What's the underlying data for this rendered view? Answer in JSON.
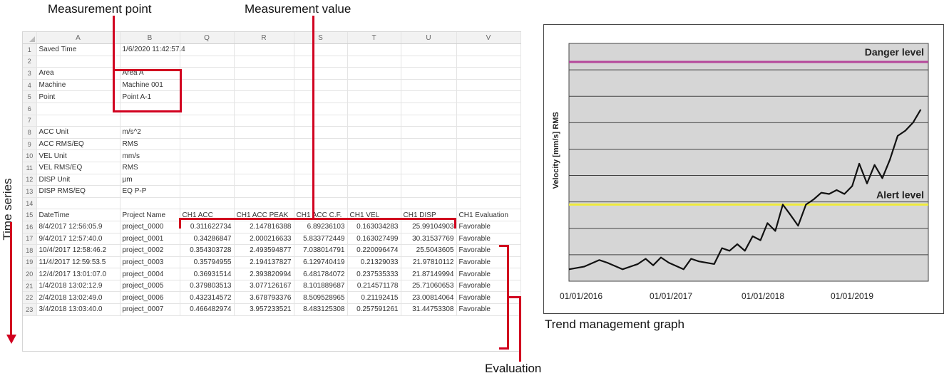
{
  "callouts": {
    "measurement_point": "Measurement point",
    "measurement_value": "Measurement value",
    "time_series": "Time series",
    "evaluation": "Evaluation",
    "trend_graph": "Trend management graph"
  },
  "sheet": {
    "columns": [
      "A",
      "B",
      "Q",
      "R",
      "S",
      "T",
      "U",
      "V"
    ],
    "rows": [
      {
        "n": "1",
        "cells": [
          "Saved Time",
          "1/6/2020 11:42:57.4",
          "",
          "",
          "",
          "",
          "",
          ""
        ]
      },
      {
        "n": "2",
        "cells": [
          "",
          "",
          "",
          "",
          "",
          "",
          "",
          ""
        ]
      },
      {
        "n": "3",
        "cells": [
          "Area",
          "Area A",
          "",
          "",
          "",
          "",
          "",
          ""
        ]
      },
      {
        "n": "4",
        "cells": [
          "Machine",
          "Machine 001",
          "",
          "",
          "",
          "",
          "",
          ""
        ]
      },
      {
        "n": "5",
        "cells": [
          "Point",
          "Point A-1",
          "",
          "",
          "",
          "",
          "",
          ""
        ]
      },
      {
        "n": "6",
        "cells": [
          "",
          "",
          "",
          "",
          "",
          "",
          "",
          ""
        ]
      },
      {
        "n": "7",
        "cells": [
          "",
          "",
          "",
          "",
          "",
          "",
          "",
          ""
        ]
      },
      {
        "n": "8",
        "cells": [
          "ACC Unit",
          "m/s^2",
          "",
          "",
          "",
          "",
          "",
          ""
        ]
      },
      {
        "n": "9",
        "cells": [
          "ACC RMS/EQ",
          "RMS",
          "",
          "",
          "",
          "",
          "",
          ""
        ]
      },
      {
        "n": "10",
        "cells": [
          "VEL Unit",
          "mm/s",
          "",
          "",
          "",
          "",
          "",
          ""
        ]
      },
      {
        "n": "11",
        "cells": [
          "VEL RMS/EQ",
          "RMS",
          "",
          "",
          "",
          "",
          "",
          ""
        ]
      },
      {
        "n": "12",
        "cells": [
          "DISP Unit",
          "µm",
          "",
          "",
          "",
          "",
          "",
          ""
        ]
      },
      {
        "n": "13",
        "cells": [
          "DISP RMS/EQ",
          "EQ P-P",
          "",
          "",
          "",
          "",
          "",
          ""
        ]
      },
      {
        "n": "14",
        "cells": [
          "",
          "",
          "",
          "",
          "",
          "",
          "",
          ""
        ]
      },
      {
        "n": "15",
        "cells": [
          "DateTime",
          "Project Name",
          "CH1 ACC",
          "CH1 ACC PEAK",
          "CH1 ACC C.F.",
          "CH1 VEL",
          "CH1 DISP",
          "CH1 Evaluation"
        ]
      },
      {
        "n": "16",
        "cells": [
          "8/4/2017 12:56:05.9",
          "project_0000",
          "0.311622734",
          "2.147816388",
          "6.89236103",
          "0.163034283",
          "25.99104903",
          "Favorable"
        ]
      },
      {
        "n": "17",
        "cells": [
          "9/4/2017 12:57:40.0",
          "project_0001",
          "0.34286847",
          "2.000216633",
          "5.833772449",
          "0.163027499",
          "30.31537769",
          "Favorable"
        ]
      },
      {
        "n": "18",
        "cells": [
          "10/4/2017 12:58:46.2",
          "project_0002",
          "0.354303728",
          "2.493594877",
          "7.038014791",
          "0.220096474",
          "25.5043605",
          "Favorable"
        ]
      },
      {
        "n": "19",
        "cells": [
          "11/4/2017 12:59:53.5",
          "project_0003",
          "0.35794955",
          "2.194137827",
          "6.129740419",
          "0.21329033",
          "21.97810112",
          "Favorable"
        ]
      },
      {
        "n": "20",
        "cells": [
          "12/4/2017 13:01:07.0",
          "project_0004",
          "0.36931514",
          "2.393820994",
          "6.481784072",
          "0.237535333",
          "21.87149994",
          "Favorable"
        ]
      },
      {
        "n": "21",
        "cells": [
          "1/4/2018 13:02:12.9",
          "project_0005",
          "0.379803513",
          "3.077126167",
          "8.101889687",
          "0.214571178",
          "25.71060653",
          "Favorable"
        ]
      },
      {
        "n": "22",
        "cells": [
          "2/4/2018 13:02:49.0",
          "project_0006",
          "0.432314572",
          "3.678793376",
          "8.509528965",
          "0.21192415",
          "23.00814064",
          "Favorable"
        ]
      },
      {
        "n": "23",
        "cells": [
          "3/4/2018 13:03:40.0",
          "project_0007",
          "0.466482974",
          "3.957233521",
          "8.483125308",
          "0.257591261",
          "31.44753308",
          "Favorable"
        ]
      }
    ]
  },
  "chart_data": {
    "type": "line",
    "ylabel": "Velocity [mm/s] RMS",
    "x_ticks": [
      "01/01/2016",
      "01/01/2017",
      "01/01/2018",
      "01/01/2019"
    ],
    "x_start": "2016-01-01",
    "x_end": "2019-12-01",
    "ylim": [
      0,
      9
    ],
    "grid": true,
    "thresholds": [
      {
        "name": "Danger level",
        "value": 8.3,
        "color": "#b5479a"
      },
      {
        "name": "Alert level",
        "value": 2.9,
        "color": "#eeea3c"
      }
    ],
    "series": [
      {
        "values_x": [
          "2016-01-01",
          "2016-03-01",
          "2016-05-01",
          "2016-06-01",
          "2016-08-01",
          "2016-10-01",
          "2016-11-01",
          "2016-12-01",
          "2017-01-01",
          "2017-02-01",
          "2017-04-01",
          "2017-05-01",
          "2017-06-01",
          "2017-08-01",
          "2017-09-01",
          "2017-10-01",
          "2017-11-01",
          "2017-12-01",
          "2018-01-01",
          "2018-02-01",
          "2018-03-01",
          "2018-04-01",
          "2018-05-01",
          "2018-06-01",
          "2018-07-01",
          "2018-08-01",
          "2018-09-01",
          "2018-10-01",
          "2018-11-01",
          "2018-12-01",
          "2019-01-01",
          "2019-02-01",
          "2019-03-01",
          "2019-04-01",
          "2019-05-01",
          "2019-06-01",
          "2019-07-01",
          "2019-08-01",
          "2019-09-01",
          "2019-10-01",
          "2019-11-01"
        ],
        "values_y": [
          0.45,
          0.55,
          0.8,
          0.7,
          0.45,
          0.65,
          0.85,
          0.6,
          0.9,
          0.7,
          0.45,
          0.85,
          0.75,
          0.65,
          1.25,
          1.15,
          1.4,
          1.15,
          1.7,
          1.55,
          2.2,
          1.9,
          2.9,
          2.5,
          2.1,
          2.9,
          3.1,
          3.35,
          3.3,
          3.45,
          3.3,
          3.6,
          4.45,
          3.7,
          4.4,
          3.9,
          4.6,
          5.5,
          5.7,
          6.0,
          6.5
        ]
      }
    ]
  }
}
